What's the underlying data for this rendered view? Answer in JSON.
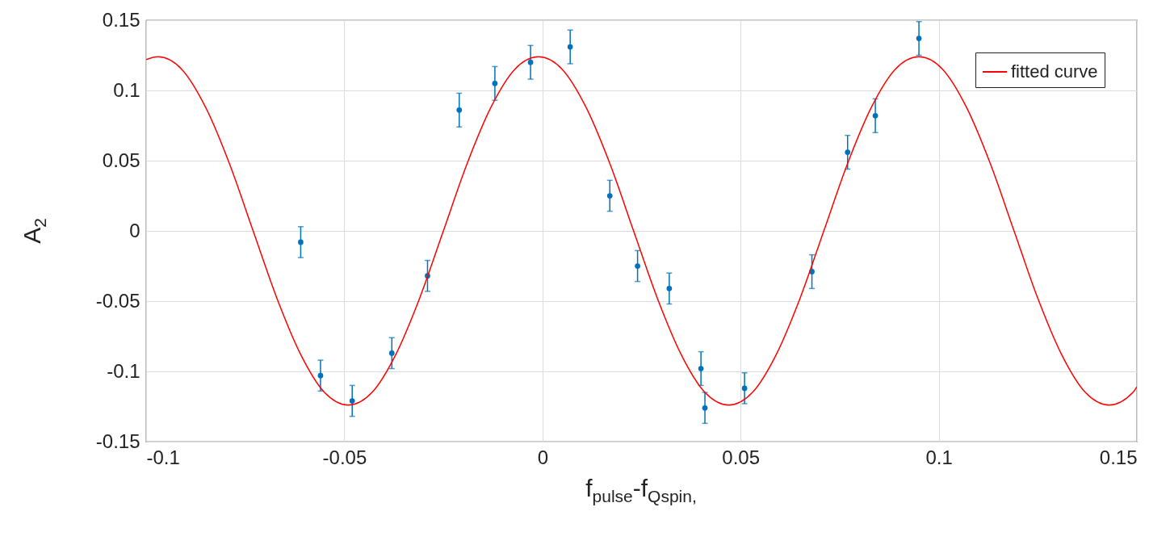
{
  "chart_data": {
    "type": "scatter",
    "xlabel": "f$_{pulse}$-f$_{Qspin,}$",
    "ylabel": "A$_{2}$",
    "xlim": [
      -0.1,
      0.15
    ],
    "ylim": [
      -0.15,
      0.15
    ],
    "xticks": [
      -0.1,
      -0.05,
      0,
      0.05,
      0.1,
      0.15
    ],
    "yticks": [
      -0.15,
      -0.1,
      -0.05,
      0,
      0.05,
      0.1,
      0.15
    ],
    "grid": true,
    "legend": "top right",
    "marker": "circle",
    "series": [
      {
        "color": "#0072bd",
        "x": [
          -0.061,
          -0.056,
          -0.048,
          -0.038,
          -0.029,
          -0.021,
          -0.012,
          -0.003,
          0.007,
          0.017,
          0.024,
          0.032,
          0.04,
          0.041,
          0.051,
          0.068,
          0.077,
          0.084,
          0.095
        ],
        "values": [
          -0.008,
          -0.103,
          -0.121,
          -0.087,
          -0.032,
          0.086,
          0.105,
          0.12,
          0.131,
          0.025,
          -0.025,
          -0.041,
          -0.098,
          -0.126,
          -0.112,
          -0.029,
          0.056,
          0.082,
          0.137
        ],
        "errors": [
          0.011,
          0.011,
          0.011,
          0.011,
          0.011,
          0.012,
          0.012,
          0.012,
          0.012,
          0.011,
          0.011,
          0.011,
          0.012,
          0.011,
          0.011,
          0.012,
          0.012,
          0.012,
          0.012
        ]
      },
      {
        "type": "line",
        "name": "fitted curve",
        "color": "#ff0000",
        "line_style": "solid",
        "marker": "none",
        "x": [
          -0.1,
          -0.097,
          -0.091,
          -0.085,
          -0.079,
          -0.073,
          -0.067,
          -0.061,
          -0.055,
          -0.049,
          -0.043,
          -0.037,
          -0.031,
          -0.025,
          -0.019,
          -0.013,
          -0.007,
          -0.001,
          0.005,
          0.011,
          0.017,
          0.023,
          0.029,
          0.035,
          0.041,
          0.047,
          0.053,
          0.059,
          0.065,
          0.071,
          0.077,
          0.083,
          0.089,
          0.095,
          0.101,
          0.107,
          0.113,
          0.119,
          0.125,
          0.131,
          0.137,
          0.143,
          0.149,
          0.15
        ],
        "values": [
          0.122,
          0.124,
          0.115,
          0.088,
          0.048,
          0,
          -0.048,
          -0.088,
          -0.115,
          -0.124,
          -0.115,
          -0.088,
          -0.048,
          0,
          0.048,
          0.088,
          0.115,
          0.124,
          0.115,
          0.088,
          0.048,
          0,
          -0.048,
          -0.088,
          -0.115,
          -0.124,
          -0.115,
          -0.088,
          -0.048,
          0,
          0.048,
          0.088,
          0.115,
          0.124,
          0.115,
          0.088,
          0.048,
          0,
          -0.048,
          -0.088,
          -0.115,
          -0.124,
          -0.115,
          -0.111
        ]
      }
    ]
  }
}
